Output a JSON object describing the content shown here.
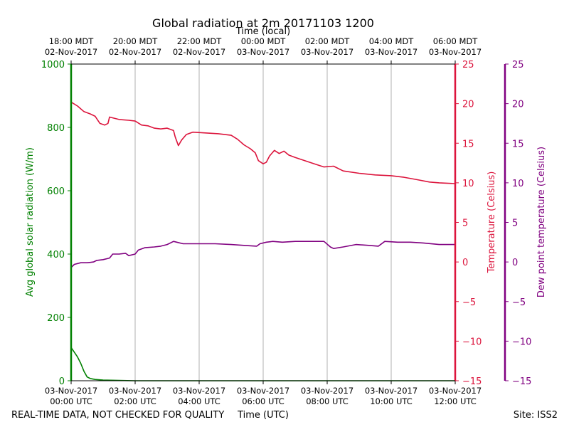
{
  "chart_data": {
    "type": "line",
    "title": "Global radiation at 2m 20171103 1200",
    "top_axis_label": "Time (local)",
    "xlabel": "Time (UTC)",
    "footer_left": "REAL-TIME DATA, NOT CHECKED FOR QUALITY",
    "footer_right": "Site: ISS2",
    "x_range_hours": [
      0,
      12
    ],
    "x_ticks_bottom": [
      {
        "hour": 0,
        "date": "03-Nov-2017",
        "time": "00:00 UTC"
      },
      {
        "hour": 2,
        "date": "03-Nov-2017",
        "time": "02:00 UTC"
      },
      {
        "hour": 4,
        "date": "03-Nov-2017",
        "time": "04:00 UTC"
      },
      {
        "hour": 6,
        "date": "03-Nov-2017",
        "time": "06:00 UTC"
      },
      {
        "hour": 8,
        "date": "03-Nov-2017",
        "time": "08:00 UTC"
      },
      {
        "hour": 10,
        "date": "03-Nov-2017",
        "time": "10:00 UTC"
      },
      {
        "hour": 12,
        "date": "03-Nov-2017",
        "time": "12:00 UTC"
      }
    ],
    "x_ticks_top": [
      {
        "hour": 0,
        "time": "18:00 MDT",
        "date": "02-Nov-2017"
      },
      {
        "hour": 2,
        "time": "20:00 MDT",
        "date": "02-Nov-2017"
      },
      {
        "hour": 4,
        "time": "22:00 MDT",
        "date": "02-Nov-2017"
      },
      {
        "hour": 6,
        "time": "00:00 MDT",
        "date": "03-Nov-2017"
      },
      {
        "hour": 8,
        "time": "02:00 MDT",
        "date": "03-Nov-2017"
      },
      {
        "hour": 10,
        "time": "04:00 MDT",
        "date": "03-Nov-2017"
      },
      {
        "hour": 12,
        "time": "06:00 MDT",
        "date": "03-Nov-2017"
      }
    ],
    "grid": "vertical",
    "axes": {
      "radiation": {
        "label": "Avg global solar radiation (W/m)",
        "range": [
          0,
          1000
        ],
        "ticks": [
          0,
          200,
          400,
          600,
          800,
          1000
        ],
        "color": "#008000"
      },
      "temperature": {
        "label": "Temperature (Celsius)",
        "range": [
          -15,
          25
        ],
        "ticks": [
          -15,
          -10,
          -5,
          0,
          5,
          10,
          15,
          20,
          25
        ],
        "color": "#dc143c"
      },
      "dewpoint": {
        "label": "Dew point temperature (Celsius)",
        "range": [
          -15,
          25
        ],
        "ticks": [
          -15,
          -10,
          -5,
          0,
          5,
          10,
          15,
          20,
          25
        ],
        "color": "#800080"
      }
    },
    "series": [
      {
        "name": "Avg global solar radiation",
        "axis": "radiation",
        "color": "#008000",
        "points": [
          [
            0,
            105
          ],
          [
            0.1,
            90
          ],
          [
            0.2,
            75
          ],
          [
            0.3,
            55
          ],
          [
            0.4,
            30
          ],
          [
            0.5,
            12
          ],
          [
            0.6,
            7
          ],
          [
            0.75,
            4
          ],
          [
            1.0,
            2
          ],
          [
            1.5,
            1
          ],
          [
            2.0,
            0
          ],
          [
            12,
            0
          ]
        ]
      },
      {
        "name": "Temperature",
        "axis": "temperature",
        "color": "#dc143c",
        "points": [
          [
            0,
            20.2
          ],
          [
            0.2,
            19.7
          ],
          [
            0.4,
            19.0
          ],
          [
            0.6,
            18.7
          ],
          [
            0.75,
            18.4
          ],
          [
            0.9,
            17.5
          ],
          [
            1.05,
            17.3
          ],
          [
            1.15,
            17.5
          ],
          [
            1.2,
            18.3
          ],
          [
            1.3,
            18.2
          ],
          [
            1.5,
            18.0
          ],
          [
            1.8,
            17.9
          ],
          [
            2.0,
            17.8
          ],
          [
            2.2,
            17.3
          ],
          [
            2.4,
            17.2
          ],
          [
            2.6,
            16.9
          ],
          [
            2.8,
            16.8
          ],
          [
            3.0,
            16.9
          ],
          [
            3.2,
            16.6
          ],
          [
            3.25,
            15.8
          ],
          [
            3.35,
            14.7
          ],
          [
            3.45,
            15.4
          ],
          [
            3.6,
            16.1
          ],
          [
            3.8,
            16.4
          ],
          [
            4.2,
            16.3
          ],
          [
            4.6,
            16.2
          ],
          [
            5.0,
            16.0
          ],
          [
            5.2,
            15.5
          ],
          [
            5.4,
            14.8
          ],
          [
            5.6,
            14.3
          ],
          [
            5.75,
            13.8
          ],
          [
            5.85,
            12.8
          ],
          [
            6.0,
            12.4
          ],
          [
            6.1,
            12.6
          ],
          [
            6.2,
            13.4
          ],
          [
            6.35,
            14.1
          ],
          [
            6.5,
            13.7
          ],
          [
            6.65,
            14.0
          ],
          [
            6.8,
            13.5
          ],
          [
            7.0,
            13.2
          ],
          [
            7.3,
            12.8
          ],
          [
            7.6,
            12.4
          ],
          [
            7.9,
            12.0
          ],
          [
            8.2,
            12.1
          ],
          [
            8.5,
            11.5
          ],
          [
            9.0,
            11.2
          ],
          [
            9.5,
            11.0
          ],
          [
            10.0,
            10.9
          ],
          [
            10.4,
            10.7
          ],
          [
            10.8,
            10.4
          ],
          [
            11.2,
            10.1
          ],
          [
            11.5,
            10.0
          ],
          [
            12.0,
            9.9
          ]
        ]
      },
      {
        "name": "Dew point temperature",
        "axis": "dewpoint",
        "color": "#800080",
        "points": [
          [
            0,
            -0.7
          ],
          [
            0.1,
            -0.3
          ],
          [
            0.3,
            -0.1
          ],
          [
            0.5,
            -0.1
          ],
          [
            0.7,
            0.0
          ],
          [
            0.8,
            0.2
          ],
          [
            1.0,
            0.3
          ],
          [
            1.2,
            0.5
          ],
          [
            1.3,
            1.0
          ],
          [
            1.5,
            1.0
          ],
          [
            1.7,
            1.1
          ],
          [
            1.8,
            0.8
          ],
          [
            2.0,
            1.0
          ],
          [
            2.1,
            1.5
          ],
          [
            2.3,
            1.8
          ],
          [
            2.6,
            1.9
          ],
          [
            2.8,
            2.0
          ],
          [
            3.0,
            2.2
          ],
          [
            3.2,
            2.6
          ],
          [
            3.5,
            2.3
          ],
          [
            4.0,
            2.3
          ],
          [
            4.5,
            2.3
          ],
          [
            5.0,
            2.2
          ],
          [
            5.4,
            2.1
          ],
          [
            5.8,
            2.0
          ],
          [
            5.9,
            2.3
          ],
          [
            6.1,
            2.5
          ],
          [
            6.3,
            2.6
          ],
          [
            6.6,
            2.5
          ],
          [
            7.0,
            2.6
          ],
          [
            7.5,
            2.6
          ],
          [
            7.9,
            2.6
          ],
          [
            8.1,
            1.9
          ],
          [
            8.2,
            1.7
          ],
          [
            8.5,
            1.9
          ],
          [
            8.9,
            2.2
          ],
          [
            9.3,
            2.1
          ],
          [
            9.6,
            2.0
          ],
          [
            9.8,
            2.6
          ],
          [
            10.2,
            2.5
          ],
          [
            10.6,
            2.5
          ],
          [
            11.0,
            2.4
          ],
          [
            11.5,
            2.2
          ],
          [
            12.0,
            2.2
          ]
        ]
      }
    ]
  }
}
